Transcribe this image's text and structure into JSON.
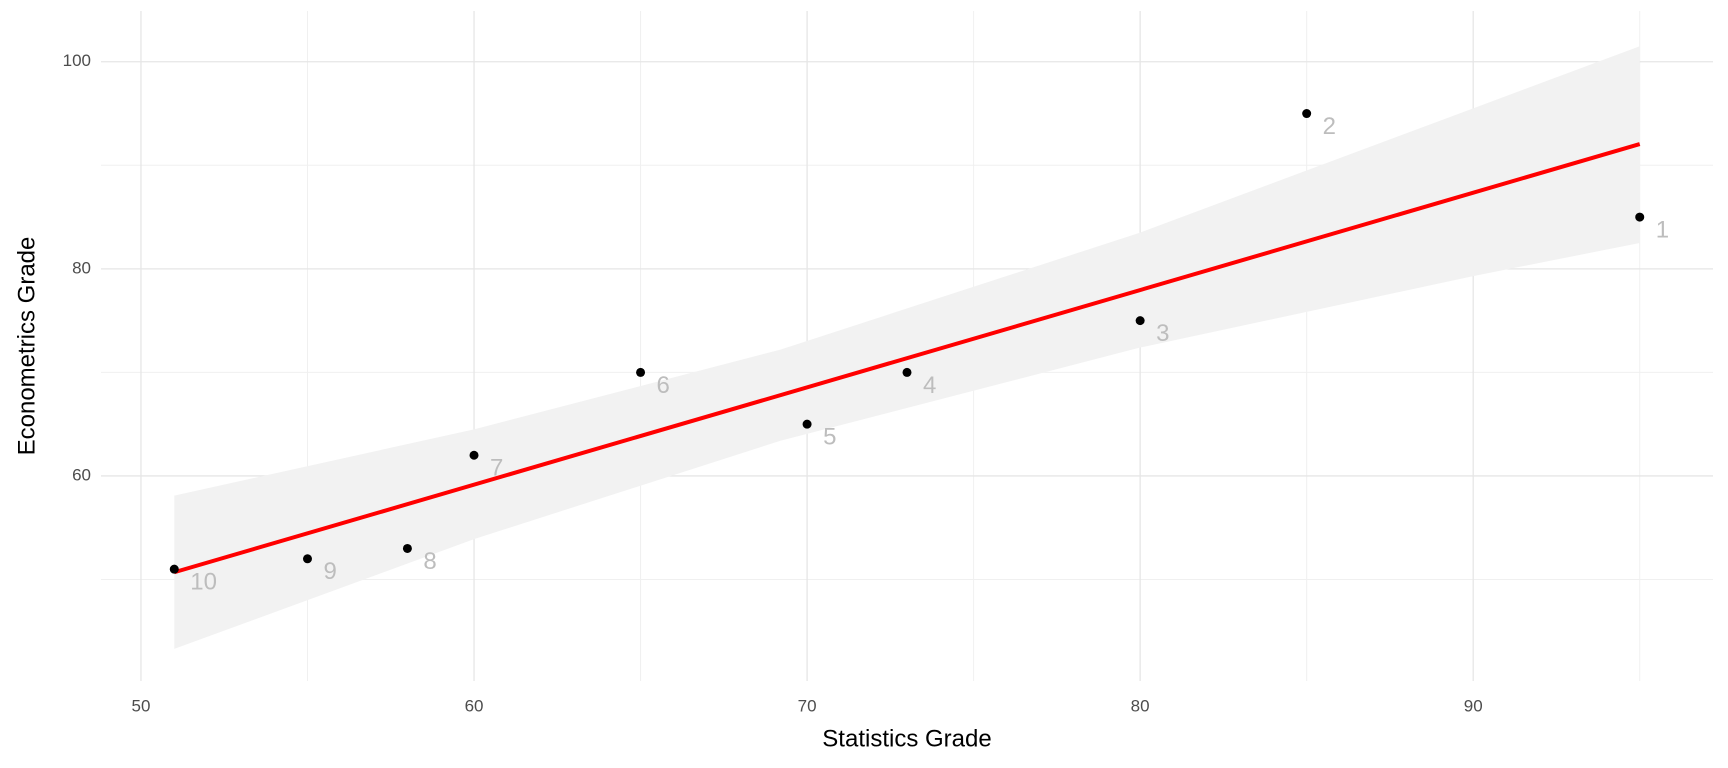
{
  "chart_data": {
    "type": "scatter",
    "x_label": "Statistics Grade",
    "y_label": "Econometrics Grade",
    "x": [
      95,
      85,
      80,
      73,
      70,
      65,
      60,
      58,
      55,
      51
    ],
    "values": [
      85,
      95,
      75,
      70,
      65,
      70,
      62,
      53,
      52,
      51
    ],
    "point_labels": [
      "1",
      "2",
      "3",
      "4",
      "5",
      "6",
      "7",
      "8",
      "9",
      "10"
    ],
    "color": "#000000",
    "label_color": "#bdbdbd",
    "fit": {
      "color": "#ff0000",
      "x": [
        51,
        95
      ],
      "y": [
        50.7,
        92.05
      ]
    },
    "band": {
      "color": "#f2f2f2",
      "x": [
        51,
        60,
        69.2,
        80,
        90,
        95
      ],
      "lower": [
        43.3,
        53.9,
        63.4,
        72.4,
        79.3,
        82.5
      ],
      "upper": [
        58.1,
        64.5,
        72.2,
        83.5,
        95.5,
        101.5
      ]
    },
    "xlim": [
      48.8,
      97.2
    ],
    "ylim": [
      40.2,
      104.9
    ],
    "xticks": [
      50,
      60,
      70,
      80,
      90
    ],
    "yticks": [
      60,
      80,
      100
    ],
    "xminor": [
      55,
      65,
      75,
      85,
      95
    ],
    "yminor": [
      50,
      70,
      90
    ],
    "grid": true
  }
}
